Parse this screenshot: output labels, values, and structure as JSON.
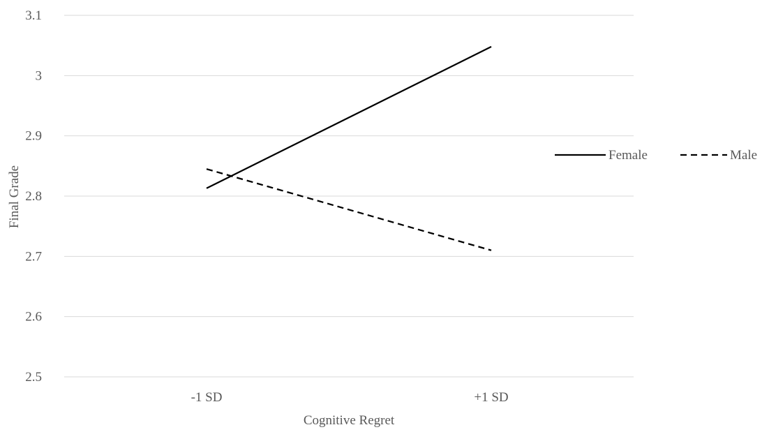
{
  "chart_data": {
    "type": "line",
    "title": "",
    "xlabel": "Cognitive Regret",
    "ylabel": "Final Grade",
    "categories": [
      "-1 SD",
      "+1 SD"
    ],
    "ylim": [
      2.5,
      3.1
    ],
    "yticks": [
      "2.5",
      "2.6",
      "2.7",
      "2.8",
      "2.9",
      "3",
      "3.1"
    ],
    "grid": true,
    "legend_position": "right",
    "series": [
      {
        "name": "Female",
        "values": [
          2.813,
          3.048
        ],
        "color": "#000000",
        "dash": "solid"
      },
      {
        "name": "Male",
        "values": [
          2.845,
          2.71
        ],
        "color": "#000000",
        "dash": "dashed"
      }
    ]
  }
}
